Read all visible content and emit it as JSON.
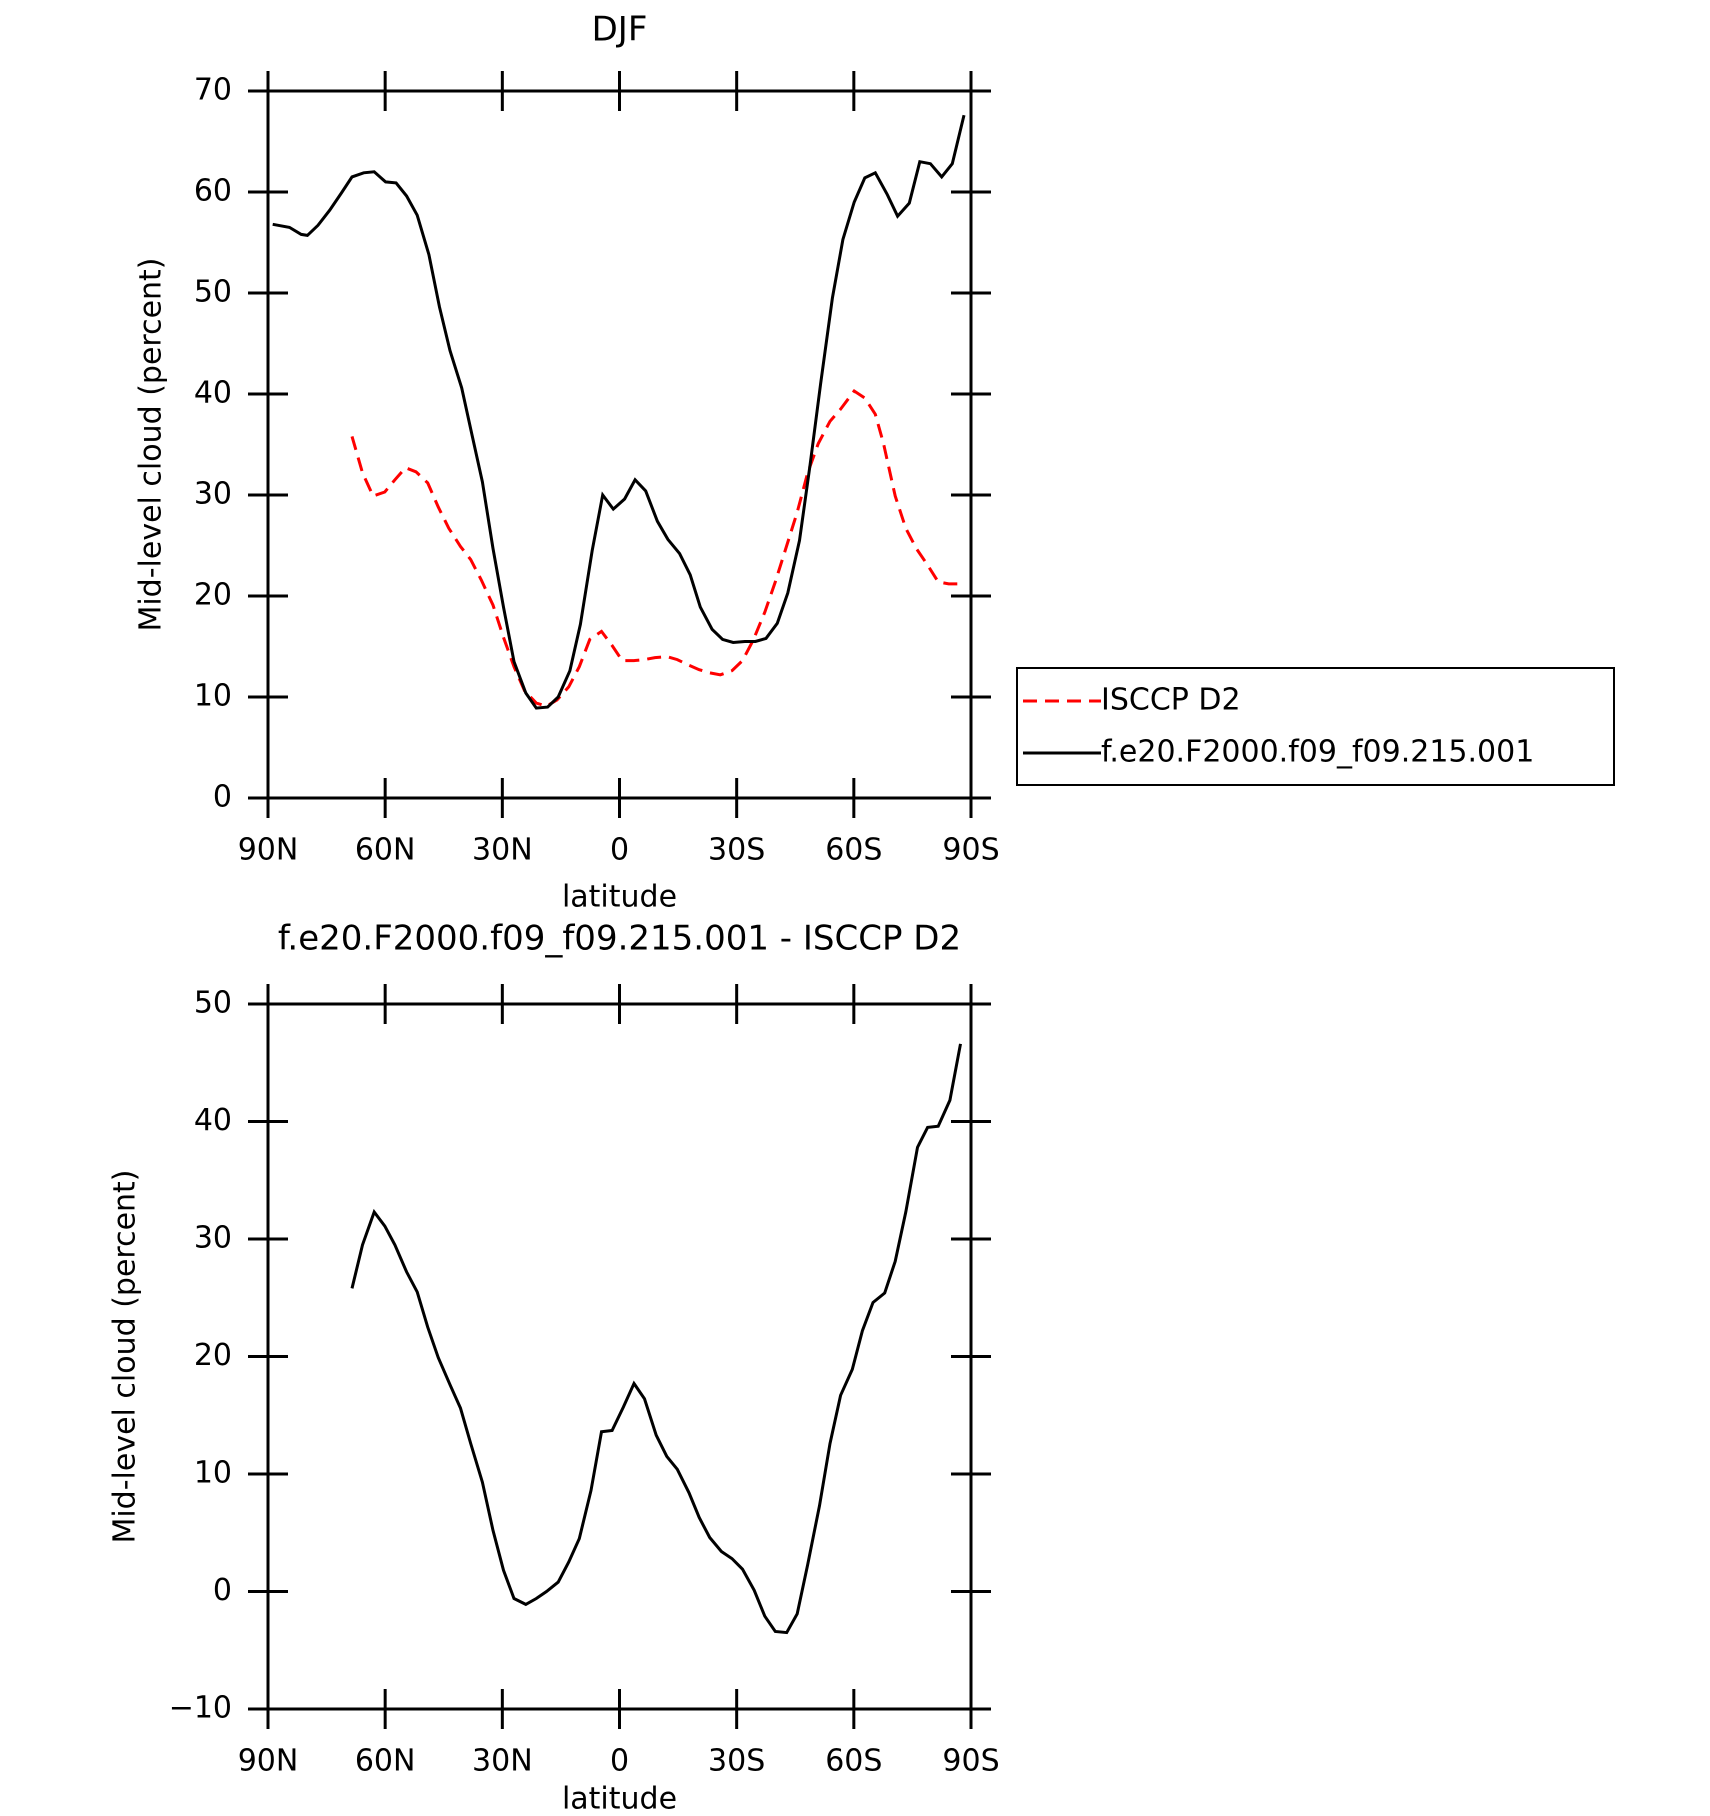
{
  "chart_data": [
    {
      "type": "line",
      "title": "DJF",
      "xlabel": "latitude",
      "ylabel": "Mid-level cloud (percent)",
      "xlim": [
        90,
        -90
      ],
      "xticks": [
        {
          "value": 90,
          "label": "90N"
        },
        {
          "value": 60,
          "label": "60N"
        },
        {
          "value": 30,
          "label": "30N"
        },
        0,
        {
          "value": -30,
          "label": "30S"
        },
        {
          "value": -60,
          "label": "60S"
        },
        {
          "value": -90,
          "label": "90S"
        }
      ],
      "ylim": [
        0,
        70
      ],
      "yticks": [
        0,
        10,
        20,
        30,
        40,
        50,
        60,
        70
      ],
      "legend": "right",
      "series": [
        {
          "name": "ISCCP D2",
          "color": "#ff0000",
          "linestyle": "dashed",
          "x": [
            68.5,
            65.8,
            63.1,
            60.1,
            57.5,
            54.8,
            52.1,
            49.1,
            46.4,
            43.7,
            40.7,
            38.1,
            35.4,
            32.4,
            29.7,
            27.0,
            24.3,
            21.3,
            18.7,
            16.0,
            13.0,
            10.3,
            7.6,
            4.6,
            1.9,
            -0.7,
            -3.7,
            -6.4,
            -9.1,
            -12.1,
            -14.8,
            -17.5,
            -20.4,
            -23.1,
            -25.8,
            -28.8,
            -31.5,
            -34.2,
            -37.2,
            -39.9,
            -42.5,
            -45.5,
            -48.2,
            -50.9,
            -53.9,
            -56.6,
            -60.1,
            -62.8,
            -65.5,
            -67.6,
            -70.6,
            -73.3,
            -76.0,
            -79.0,
            -81.6,
            -84.3,
            -87.3
          ],
          "values": [
            35.8,
            32.2,
            29.9,
            30.3,
            31.5,
            32.7,
            32.3,
            31.2,
            28.8,
            26.7,
            24.9,
            23.6,
            21.6,
            19.1,
            15.9,
            13.0,
            10.6,
            9.4,
            9.1,
            9.7,
            11.0,
            13.0,
            15.7,
            16.5,
            15.1,
            13.6,
            13.6,
            13.7,
            13.9,
            14.0,
            13.7,
            13.2,
            12.7,
            12.4,
            12.2,
            12.6,
            13.6,
            15.6,
            18.4,
            21.4,
            24.6,
            28.3,
            32.2,
            35.1,
            37.3,
            38.5,
            40.3,
            39.6,
            38.0,
            35.1,
            29.9,
            26.7,
            24.7,
            23.0,
            21.4,
            21.2,
            21.2
          ]
        },
        {
          "name": "f.e20.F2000.f09_f09.215.001",
          "color": "#000000",
          "linestyle": "solid",
          "x": [
            88.8,
            84.5,
            81.5,
            79.9,
            77.2,
            74.2,
            71.2,
            68.5,
            65.5,
            62.8,
            59.9,
            57.2,
            54.5,
            51.8,
            48.8,
            46.1,
            43.4,
            40.4,
            37.8,
            35.1,
            32.4,
            29.7,
            27.0,
            24.0,
            21.3,
            18.4,
            15.7,
            12.7,
            10.0,
            7.0,
            4.3,
            1.6,
            -1.3,
            -4.0,
            -6.7,
            -9.7,
            -12.4,
            -15.4,
            -18.1,
            -20.7,
            -23.7,
            -26.4,
            -29.1,
            -32.1,
            -34.8,
            -37.5,
            -40.4,
            -43.1,
            -46.1,
            -48.8,
            -51.5,
            -54.5,
            -57.2,
            -60.1,
            -62.8,
            -65.5,
            -68.5,
            -71.2,
            -74.2,
            -76.9,
            -79.6,
            -82.5,
            -85.2,
            -88.2
          ],
          "values": [
            56.8,
            56.5,
            55.8,
            55.7,
            56.7,
            58.2,
            59.9,
            61.5,
            61.9,
            62.0,
            61.0,
            60.9,
            59.6,
            57.7,
            53.8,
            48.6,
            44.3,
            40.6,
            36.0,
            31.3,
            24.7,
            18.9,
            13.5,
            10.4,
            8.9,
            9.0,
            10.0,
            12.6,
            17.2,
            24.5,
            30.0,
            28.6,
            29.6,
            31.5,
            30.4,
            27.4,
            25.6,
            24.2,
            22.1,
            18.9,
            16.7,
            15.7,
            15.4,
            15.5,
            15.5,
            15.8,
            17.3,
            20.3,
            25.5,
            33.0,
            41.0,
            49.5,
            55.3,
            59.0,
            61.4,
            61.9,
            59.8,
            57.6,
            58.9,
            63.0,
            62.8,
            61.5,
            62.8,
            67.6
          ]
        }
      ]
    },
    {
      "type": "line",
      "title": "f.e20.F2000.f09_f09.215.001 - ISCCP D2",
      "xlabel": "latitude",
      "ylabel": "Mid-level cloud (percent)",
      "xlim": [
        90,
        -90
      ],
      "xticks": [
        {
          "value": 90,
          "label": "90N"
        },
        {
          "value": 60,
          "label": "60N"
        },
        {
          "value": 30,
          "label": "30N"
        },
        0,
        {
          "value": -30,
          "label": "30S"
        },
        {
          "value": -60,
          "label": "60S"
        },
        {
          "value": -90,
          "label": "90S"
        }
      ],
      "ylim": [
        -10,
        50
      ],
      "yticks": [
        {
          "value": -10,
          "label": "−10"
        },
        0,
        10,
        20,
        30,
        40,
        50
      ],
      "series": [
        {
          "color": "#000000",
          "linestyle": "solid",
          "x": [
            68.5,
            65.8,
            62.8,
            60.1,
            57.5,
            54.5,
            51.8,
            49.1,
            46.4,
            43.4,
            40.7,
            38.1,
            35.1,
            32.4,
            29.7,
            27.0,
            24.0,
            21.3,
            18.7,
            15.7,
            13.0,
            10.3,
            7.3,
            4.6,
            1.9,
            -1.0,
            -3.7,
            -6.4,
            -9.4,
            -12.1,
            -14.8,
            -17.8,
            -20.4,
            -23.1,
            -26.1,
            -28.8,
            -31.5,
            -34.5,
            -37.2,
            -39.9,
            -42.8,
            -45.5,
            -48.2,
            -51.2,
            -53.9,
            -56.6,
            -59.6,
            -62.2,
            -64.9,
            -67.9,
            -70.6,
            -73.3,
            -76.3,
            -78.9,
            -81.6,
            -84.6,
            -87.3
          ],
          "values": [
            25.8,
            29.5,
            32.3,
            31.1,
            29.5,
            27.2,
            25.5,
            22.5,
            19.9,
            17.6,
            15.6,
            12.6,
            9.3,
            5.2,
            1.8,
            -0.6,
            -1.1,
            -0.6,
            0.0,
            0.8,
            2.5,
            4.5,
            8.6,
            13.6,
            13.7,
            15.7,
            17.7,
            16.4,
            13.3,
            11.5,
            10.4,
            8.4,
            6.3,
            4.6,
            3.4,
            2.8,
            1.9,
            0.1,
            -2.1,
            -3.4,
            -3.5,
            -1.9,
            2.3,
            7.3,
            12.6,
            16.7,
            18.9,
            22.2,
            24.6,
            25.4,
            28.1,
            32.3,
            37.8,
            39.5,
            39.6,
            41.8,
            46.6
          ]
        }
      ]
    }
  ]
}
